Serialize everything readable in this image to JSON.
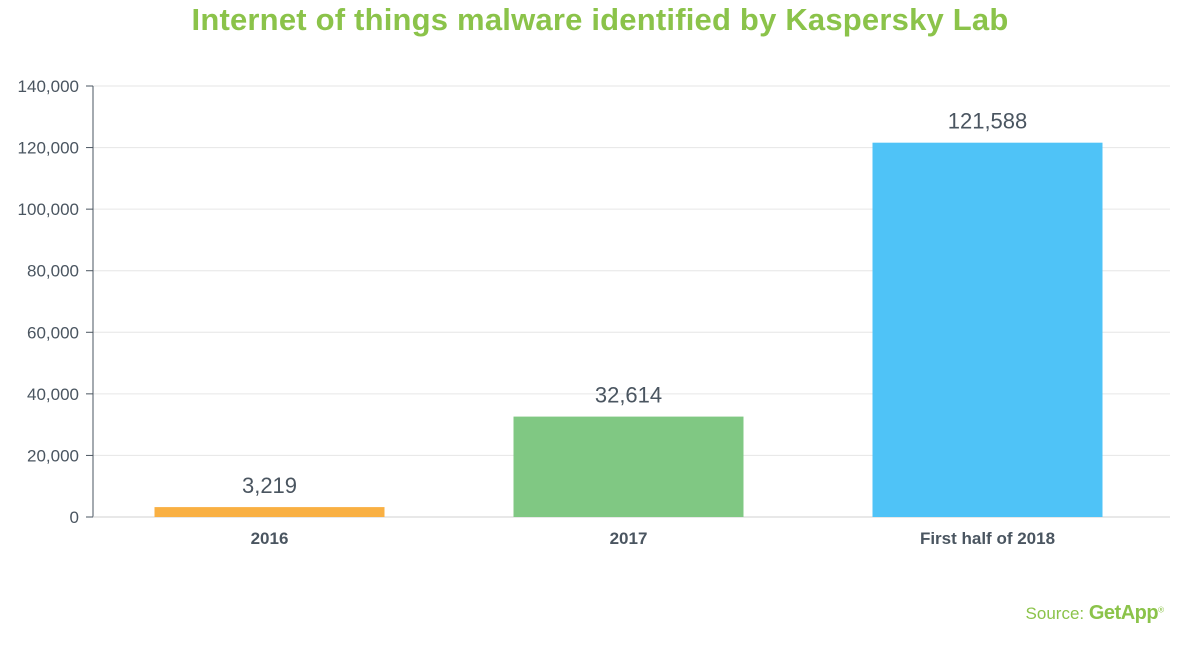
{
  "chart_data": {
    "type": "bar",
    "title": "Internet of things malware identified by Kaspersky Lab",
    "categories": [
      "2016",
      "2017",
      "First half of 2018"
    ],
    "values": [
      3219,
      32614,
      121588
    ],
    "value_labels": [
      "3,219",
      "32,614",
      "121,588"
    ],
    "colors": [
      "#f9b043",
      "#80c883",
      "#4fc3f7"
    ],
    "ylim": [
      0,
      140000
    ],
    "yticks": [
      0,
      20000,
      40000,
      60000,
      80000,
      100000,
      120000,
      140000
    ],
    "ytick_labels": [
      "0",
      "20,000",
      "40,000",
      "60,000",
      "80,000",
      "100,000",
      "120,000",
      "140,000"
    ],
    "xlabel": "",
    "ylabel": "",
    "grid": true
  },
  "source": {
    "prefix": "Source:",
    "brand": "GetApp",
    "mark": "®"
  }
}
